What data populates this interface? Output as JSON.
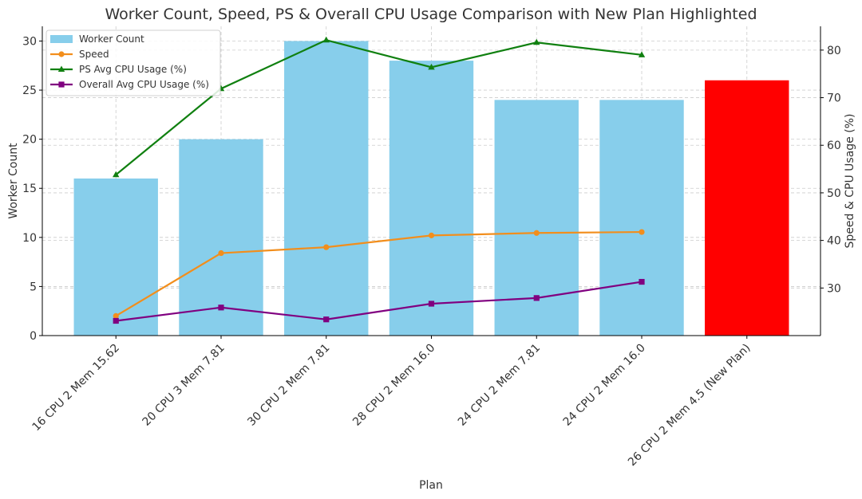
{
  "chart_data": {
    "type": "bar",
    "title": "Worker Count, Speed, PS & Overall CPU Usage Comparison with New Plan Highlighted",
    "xlabel": "Plan",
    "ylabel_left": "Worker Count",
    "ylabel_right": "Speed & CPU Usage (%)",
    "categories": [
      "16 CPU 2 Mem 15.62",
      "20 CPU 3 Mem 7.81",
      "30 CPU 2 Mem 7.81",
      "28 CPU 2 Mem 16.0",
      "24 CPU 2 Mem 7.81",
      "24 CPU 2 Mem 16.0",
      "26 CPU 2 Mem 4.5 (New Plan)"
    ],
    "ylim_left": [
      0,
      31.5
    ],
    "yticks_left": [
      0,
      5,
      10,
      15,
      20,
      25,
      30
    ],
    "ylim_right": [
      20,
      85
    ],
    "yticks_right": [
      30,
      40,
      50,
      60,
      70,
      80
    ],
    "grid": true,
    "legend_position": "top-left",
    "highlight_index": 6,
    "series": [
      {
        "name": "Worker Count",
        "type": "bar",
        "axis": "left",
        "color": "#87ceeb",
        "highlight_color": "#ff0000",
        "values": [
          16,
          20,
          30,
          28,
          24,
          24,
          26
        ]
      },
      {
        "name": "Speed",
        "type": "line",
        "axis": "left",
        "marker": "circle",
        "color": "#f28e1c",
        "values": [
          2.0,
          8.4,
          9.0,
          10.2,
          10.45,
          10.55,
          null
        ]
      },
      {
        "name": "PS Avg CPU Usage (%)",
        "type": "line",
        "axis": "right",
        "marker": "triangle",
        "color": "#108010",
        "values": [
          53.8,
          71.9,
          82.1,
          76.4,
          81.6,
          79.0,
          null
        ]
      },
      {
        "name": "Overall Avg CPU Usage (%)",
        "type": "line",
        "axis": "right",
        "marker": "square",
        "color": "#800080",
        "values": [
          23.1,
          25.9,
          23.4,
          26.7,
          27.9,
          31.3,
          null
        ]
      }
    ]
  }
}
